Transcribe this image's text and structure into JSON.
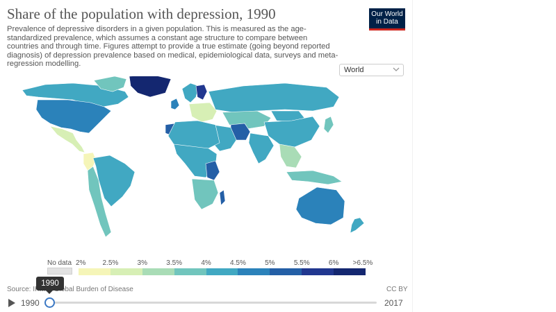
{
  "header": {
    "title": "Share of the population with depression, 1990",
    "subtitle": "Prevalence of depressive disorders in a given population. This is measured as the age-standardized prevalence, which assumes a constant age structure to compare between countries and through time. Figures attempt to provide a true estimate (going beyond reported diagnosis) of depression prevalence based on medical, epidemiological data, surveys and meta-regression modelling.",
    "logo_line1": "Our World",
    "logo_line2": "in Data"
  },
  "region_select": {
    "value": "World"
  },
  "legend": {
    "no_data_label": "No data",
    "no_data_color": "#e2e2e2",
    "ticks": [
      "2%",
      "2.5%",
      "3%",
      "3.5%",
      "4%",
      "4.5%",
      "5%",
      "5.5%",
      "6%",
      ">6.5%"
    ],
    "colors": [
      "#f5f5b8",
      "#d7efb5",
      "#a9dcb6",
      "#71c5bd",
      "#41a8c2",
      "#2b82ba",
      "#245fa6",
      "#21378f",
      "#142770"
    ]
  },
  "footer": {
    "source": "Source: IHME, Global Burden of Disease",
    "license": "CC BY"
  },
  "timeline": {
    "start_year": "1990",
    "end_year": "2017",
    "current_year": "1990",
    "position": 0
  },
  "regions": [
    {
      "name": "North America",
      "color": "#41a8c2"
    },
    {
      "name": "United States",
      "color": "#2b82ba"
    },
    {
      "name": "Greenland",
      "color": "#71c5bd"
    },
    {
      "name": "Central America",
      "color": "#d7efb5"
    },
    {
      "name": "Colombia",
      "color": "#f5f5b8"
    },
    {
      "name": "South America",
      "color": "#71c5bd"
    },
    {
      "name": "Brazil",
      "color": "#41a8c2"
    },
    {
      "name": "Iceland",
      "color": "#142770"
    },
    {
      "name": "Scandinavia",
      "color": "#41a8c2"
    },
    {
      "name": "Finland",
      "color": "#21378f"
    },
    {
      "name": "United Kingdom",
      "color": "#2b82ba"
    },
    {
      "name": "Eastern Europe",
      "color": "#d7efb5"
    },
    {
      "name": "Russia",
      "color": "#41a8c2"
    },
    {
      "name": "Kazakhstan and Central Asia",
      "color": "#71c5bd"
    },
    {
      "name": "China",
      "color": "#41a8c2"
    },
    {
      "name": "Mongolia",
      "color": "#71c5bd"
    },
    {
      "name": "Iran",
      "color": "#245fa6"
    },
    {
      "name": "Middle East",
      "color": "#41a8c2"
    },
    {
      "name": "India",
      "color": "#41a8c2"
    },
    {
      "name": "Southeast Asia",
      "color": "#a9dcb6"
    },
    {
      "name": "Indonesia",
      "color": "#71c5bd"
    },
    {
      "name": "Morocco",
      "color": "#245fa6"
    },
    {
      "name": "North Africa",
      "color": "#41a8c2"
    },
    {
      "name": "Central Africa",
      "color": "#41a8c2"
    },
    {
      "name": "Great Lakes Africa",
      "color": "#245fa6"
    },
    {
      "name": "Southern Africa",
      "color": "#71c5bd"
    },
    {
      "name": "Madagascar",
      "color": "#245fa6"
    },
    {
      "name": "Australia",
      "color": "#2b82ba"
    },
    {
      "name": "New Zealand",
      "color": "#41a8c2"
    },
    {
      "name": "Japan",
      "color": "#71c5bd"
    }
  ]
}
